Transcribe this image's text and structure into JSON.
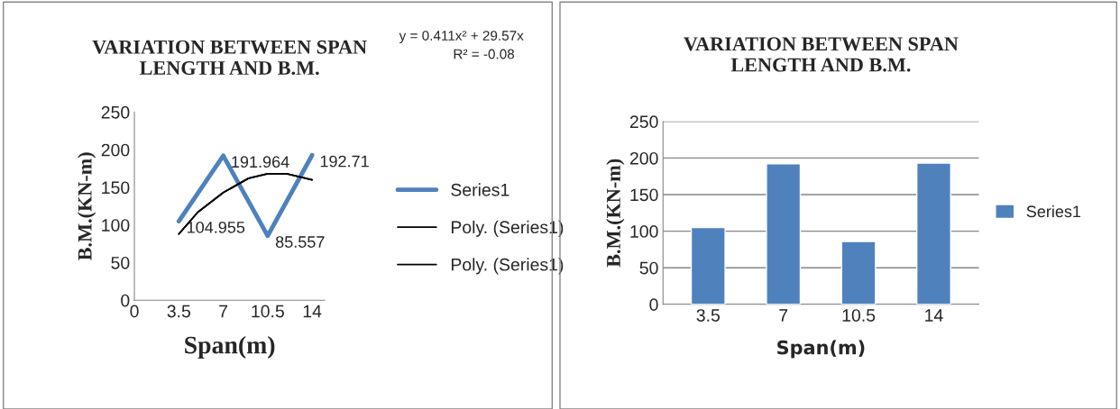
{
  "chart_data": [
    {
      "type": "line",
      "title": "VARIATION BETWEEN SPAN\nLENGTH AND B.M.",
      "xlabel": "Span(m)",
      "ylabel": "B.M.(KN-m)",
      "xlim": [
        0,
        15
      ],
      "xticks": [
        0,
        3.5,
        7,
        10.5,
        14
      ],
      "ylim": [
        0,
        250
      ],
      "yticks": [
        0,
        50,
        100,
        150,
        200,
        250
      ],
      "legend": "right",
      "grid": false,
      "series": [
        {
          "name": "Series1",
          "color": "#4f81bd",
          "x": [
            3.5,
            7,
            10.5,
            14
          ],
          "values": [
            104.955,
            191.964,
            85.557,
            192.71
          ],
          "value_labels": [
            "104.955",
            "191.964",
            "85.557",
            "192.71"
          ]
        },
        {
          "name": "Poly. (Series1)",
          "color": "#000000",
          "x": [
            3.5,
            5,
            7,
            9,
            10.5,
            12,
            14
          ],
          "values": [
            88,
            117,
            143,
            162,
            168,
            168,
            160
          ]
        },
        {
          "name": "Poly. (Series1)",
          "color": "#000000",
          "x": [
            3.5,
            5,
            7,
            9,
            10.5,
            12,
            14
          ],
          "values": [
            88,
            117,
            143,
            162,
            168,
            168,
            160
          ]
        }
      ],
      "annotations": [
        "y = 0.411x² + 29.57x",
        "R² = -0.08"
      ]
    },
    {
      "type": "bar",
      "title": "VARIATION BETWEEN SPAN\nLENGTH AND B.M.",
      "xlabel": "Span(m)",
      "ylabel": "B.M.(KN-m)",
      "categories": [
        "3.5",
        "7",
        "10.5",
        "14"
      ],
      "ylim": [
        0,
        250
      ],
      "yticks": [
        0,
        50,
        100,
        150,
        200,
        250
      ],
      "legend": "right",
      "grid": "y",
      "series": [
        {
          "name": "Series1",
          "color": "#4f81bd",
          "values": [
            105,
            192,
            86,
            193
          ]
        }
      ]
    }
  ]
}
